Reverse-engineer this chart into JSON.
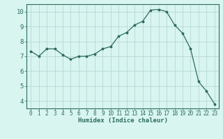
{
  "x": [
    0,
    1,
    2,
    3,
    4,
    5,
    6,
    7,
    8,
    9,
    10,
    11,
    12,
    13,
    14,
    15,
    16,
    17,
    18,
    19,
    20,
    21,
    22,
    23
  ],
  "y": [
    7.35,
    7.0,
    7.5,
    7.5,
    7.1,
    6.8,
    7.0,
    7.0,
    7.15,
    7.5,
    7.65,
    8.35,
    8.6,
    9.1,
    9.35,
    10.1,
    10.15,
    10.0,
    9.1,
    8.55,
    7.5,
    5.3,
    4.65,
    3.8
  ],
  "xlabel": "Humidex (Indice chaleur)",
  "ylim": [
    3.5,
    10.5
  ],
  "xlim": [
    -0.5,
    23.5
  ],
  "yticks": [
    4,
    5,
    6,
    7,
    8,
    9,
    10
  ],
  "xticks": [
    0,
    1,
    2,
    3,
    4,
    5,
    6,
    7,
    8,
    9,
    10,
    11,
    12,
    13,
    14,
    15,
    16,
    17,
    18,
    19,
    20,
    21,
    22,
    23
  ],
  "line_color": "#2d6b5e",
  "marker": "*",
  "marker_size": 2.5,
  "bg_color": "#d8f5f0",
  "grid_color": "#b8d8d4",
  "axis_color": "#2d6b5e",
  "tick_color": "#2d6b5e",
  "label_color": "#2d6b5e",
  "xlabel_fontsize": 6.5,
  "tick_fontsize": 5.5,
  "ytick_fontsize": 6.5
}
